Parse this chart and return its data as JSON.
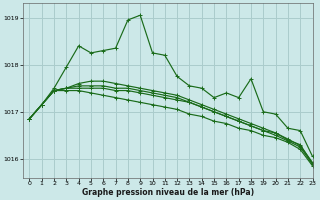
{
  "bg_color": "#cce8e8",
  "grid_color": "#aacccc",
  "line_color": "#1a6b1a",
  "xlabel": "Graphe pression niveau de la mer (hPa)",
  "xlim": [
    -0.5,
    23
  ],
  "ylim": [
    1015.6,
    1019.3
  ],
  "yticks": [
    1016,
    1017,
    1018,
    1019
  ],
  "xticks": [
    0,
    1,
    2,
    3,
    4,
    5,
    6,
    7,
    8,
    9,
    10,
    11,
    12,
    13,
    14,
    15,
    16,
    17,
    18,
    19,
    20,
    21,
    22,
    23
  ],
  "series1": [
    1016.85,
    1017.15,
    1017.5,
    1017.95,
    1018.4,
    1018.25,
    1018.3,
    1018.35,
    1018.95,
    1019.05,
    1018.25,
    1018.2,
    1017.75,
    1017.55,
    1017.5,
    1017.3,
    1017.4,
    1017.3,
    1017.7,
    1017.0,
    1016.95,
    1016.65,
    1016.6,
    1016.05
  ],
  "series2": [
    1016.85,
    1017.15,
    1017.45,
    1017.45,
    1017.45,
    1017.4,
    1017.35,
    1017.3,
    1017.25,
    1017.2,
    1017.15,
    1017.1,
    1017.05,
    1016.95,
    1016.9,
    1016.8,
    1016.75,
    1016.65,
    1016.6,
    1016.5,
    1016.45,
    1016.35,
    1016.2,
    1015.85
  ],
  "series3": [
    1016.85,
    1017.15,
    1017.45,
    1017.5,
    1017.5,
    1017.5,
    1017.5,
    1017.45,
    1017.45,
    1017.4,
    1017.35,
    1017.3,
    1017.25,
    1017.2,
    1017.1,
    1017.0,
    1016.9,
    1016.8,
    1016.7,
    1016.6,
    1016.55,
    1016.4,
    1016.3,
    1015.9
  ],
  "series4": [
    1016.85,
    1017.15,
    1017.45,
    1017.5,
    1017.55,
    1017.55,
    1017.55,
    1017.5,
    1017.5,
    1017.45,
    1017.4,
    1017.35,
    1017.3,
    1017.2,
    1017.1,
    1017.0,
    1016.9,
    1016.8,
    1016.7,
    1016.6,
    1016.5,
    1016.38,
    1016.25,
    1015.88
  ],
  "series5": [
    1016.85,
    1017.15,
    1017.45,
    1017.5,
    1017.6,
    1017.65,
    1017.65,
    1017.6,
    1017.55,
    1017.5,
    1017.45,
    1017.4,
    1017.35,
    1017.25,
    1017.15,
    1017.05,
    1016.95,
    1016.85,
    1016.75,
    1016.65,
    1016.55,
    1016.42,
    1016.28,
    1015.92
  ]
}
